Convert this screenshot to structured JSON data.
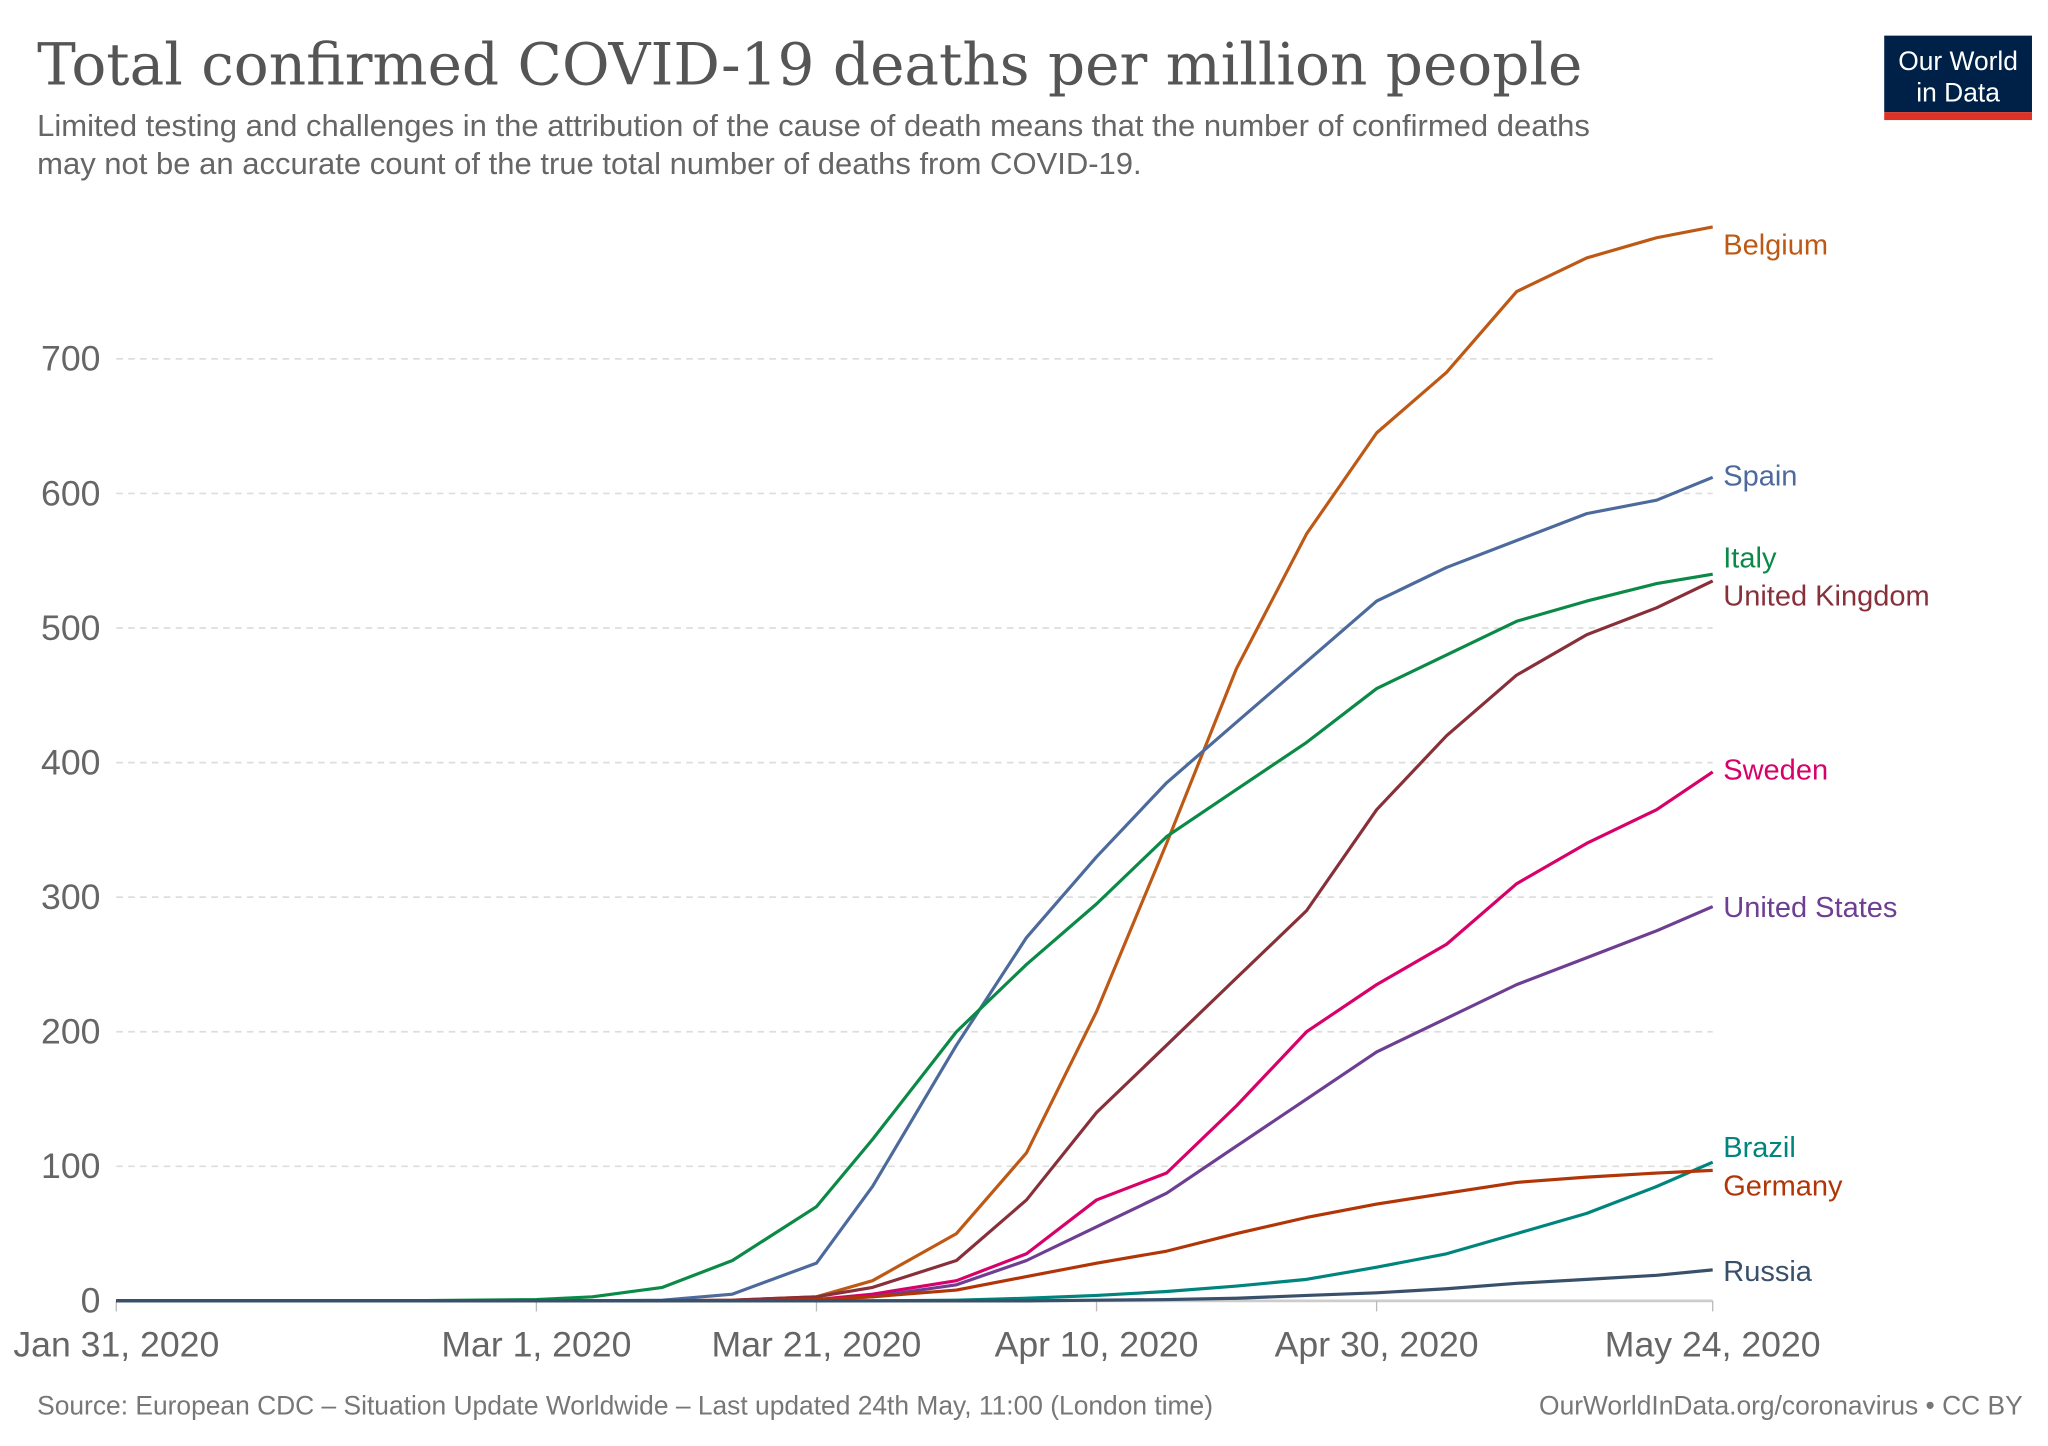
{
  "header": {
    "title": "Total confirmed COVID-19 deaths per million people",
    "subtitle_line1": "Limited testing and challenges in the attribution of the cause of death means that the number of confirmed deaths",
    "subtitle_line2": "may not be an accurate count of the true total number of deaths from COVID-19.",
    "logo_line1": "Our World",
    "logo_line2": "in Data",
    "logo_bg": "#002147",
    "logo_accent": "#dc3326"
  },
  "footer": {
    "source": "Source: European CDC – Situation Update Worldwide – Last updated 24th May, 11:00 (London time)",
    "credit": "OurWorldInData.org/coronavirus • CC BY"
  },
  "chart_data": {
    "type": "line",
    "title": "Total confirmed COVID-19 deaths per million people",
    "xlabel": "",
    "ylabel": "",
    "xlim": [
      "2020-01-31",
      "2020-05-24"
    ],
    "ylim": [
      0,
      800
    ],
    "grid": true,
    "legend": "right (labels at line ends)",
    "x_ticks": [
      {
        "date": "2020-01-31",
        "label": "Jan 31, 2020"
      },
      {
        "date": "2020-03-01",
        "label": "Mar 1, 2020"
      },
      {
        "date": "2020-03-21",
        "label": "Mar 21, 2020"
      },
      {
        "date": "2020-04-10",
        "label": "Apr 10, 2020"
      },
      {
        "date": "2020-04-30",
        "label": "Apr 30, 2020"
      },
      {
        "date": "2020-05-24",
        "label": "May 24, 2020"
      }
    ],
    "y_ticks": [
      0,
      100,
      200,
      300,
      400,
      500,
      600,
      700
    ],
    "x": [
      "2020-01-31",
      "2020-02-20",
      "2020-03-01",
      "2020-03-05",
      "2020-03-10",
      "2020-03-15",
      "2020-03-21",
      "2020-03-25",
      "2020-03-31",
      "2020-04-05",
      "2020-04-10",
      "2020-04-15",
      "2020-04-20",
      "2020-04-25",
      "2020-04-30",
      "2020-05-05",
      "2020-05-10",
      "2020-05-15",
      "2020-05-20",
      "2020-05-24"
    ],
    "series": [
      {
        "name": "Belgium",
        "color": "#be5915",
        "values": [
          0,
          0,
          0,
          0,
          0,
          0.5,
          3,
          15,
          50,
          110,
          215,
          340,
          470,
          570,
          645,
          690,
          750,
          775,
          790,
          798
        ]
      },
      {
        "name": "Spain",
        "color": "#4c6a9c",
        "values": [
          0,
          0,
          0,
          0,
          0.5,
          5,
          28,
          85,
          190,
          270,
          330,
          385,
          430,
          475,
          520,
          545,
          565,
          585,
          595,
          612
        ]
      },
      {
        "name": "Italy",
        "color": "#0a8a46",
        "values": [
          0,
          0,
          1,
          3,
          10,
          30,
          70,
          120,
          200,
          250,
          295,
          345,
          380,
          415,
          455,
          480,
          505,
          520,
          533,
          540
        ]
      },
      {
        "name": "United Kingdom",
        "color": "#883039",
        "values": [
          0,
          0,
          0,
          0,
          0,
          0.5,
          3,
          10,
          30,
          75,
          140,
          190,
          240,
          290,
          365,
          420,
          465,
          495,
          515,
          535
        ]
      },
      {
        "name": "Sweden",
        "color": "#d80069",
        "values": [
          0,
          0,
          0,
          0,
          0,
          0,
          1,
          5,
          15,
          35,
          75,
          95,
          145,
          200,
          235,
          265,
          310,
          340,
          365,
          393
        ]
      },
      {
        "name": "United States",
        "color": "#6d3e91",
        "values": [
          0,
          0,
          0,
          0,
          0,
          0,
          1,
          3,
          12,
          30,
          55,
          80,
          115,
          150,
          185,
          210,
          235,
          255,
          275,
          293
        ]
      },
      {
        "name": "Brazil",
        "color": "#00847e",
        "values": [
          0,
          0,
          0,
          0,
          0,
          0,
          0,
          0,
          0.5,
          2,
          4,
          7,
          11,
          16,
          25,
          35,
          50,
          65,
          85,
          103
        ]
      },
      {
        "name": "Germany",
        "color": "#b13507",
        "values": [
          0,
          0,
          0,
          0,
          0,
          0,
          1,
          3,
          8,
          18,
          28,
          37,
          50,
          62,
          72,
          80,
          88,
          92,
          95,
          97
        ]
      },
      {
        "name": "Russia",
        "color": "#38506a",
        "values": [
          0,
          0,
          0,
          0,
          0,
          0,
          0,
          0,
          0,
          0,
          0.5,
          1,
          2,
          4,
          6,
          9,
          13,
          16,
          19,
          23
        ]
      }
    ]
  }
}
